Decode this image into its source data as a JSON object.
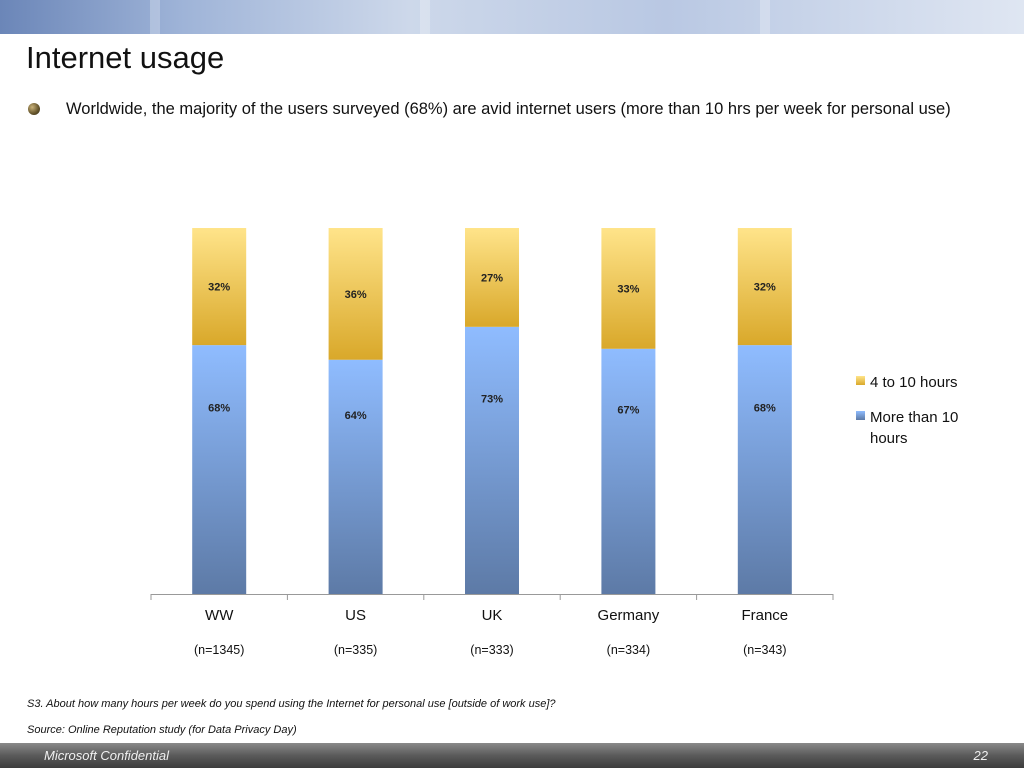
{
  "slide": {
    "title": "Internet usage",
    "bullet": "Worldwide, the majority of the users surveyed (68%) are avid internet users (more than 10 hrs per week for personal use)",
    "footnote_question": "S3. About how many hours per week do you spend using the Internet for personal use [outside of work use]?",
    "footnote_source": "Source: Online Reputation study (for Data Privacy Day)",
    "footer_left": "Microsoft Confidential",
    "footer_right": "22"
  },
  "colors": {
    "series_upper_top": "#ffe48a",
    "series_upper_bottom": "#d9a82a",
    "series_lower_top": "#8fbcff",
    "series_lower_bottom": "#5d7aa6"
  },
  "chart_data": {
    "type": "bar",
    "stacked": true,
    "categories": [
      "WW",
      "US",
      "UK",
      "Germany",
      "France"
    ],
    "sample_sizes": [
      "(n=1345)",
      "(n=335)",
      "(n=333)",
      "(n=334)",
      "(n=343)"
    ],
    "series": [
      {
        "name": "More than 10 hours",
        "values": [
          68,
          64,
          73,
          67,
          68
        ],
        "labels": [
          "68%",
          "64%",
          "73%",
          "67%",
          "68%"
        ]
      },
      {
        "name": "4 to 10 hours",
        "values": [
          32,
          36,
          27,
          33,
          32
        ],
        "labels": [
          "32%",
          "36%",
          "27%",
          "33%",
          "32%"
        ]
      }
    ],
    "ylim": [
      0,
      100
    ],
    "legend_position": "right",
    "grid": false
  }
}
